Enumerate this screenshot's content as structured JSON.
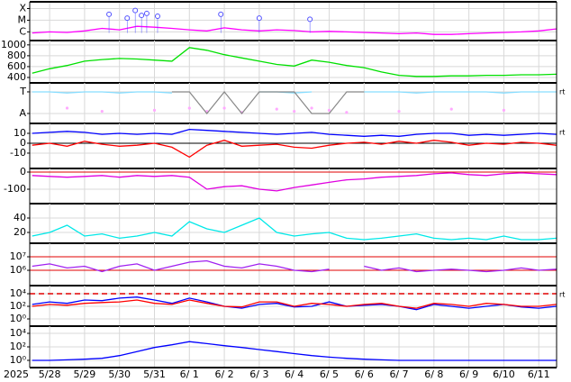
{
  "chart_data": [
    {
      "type": "line",
      "log": true,
      "ylim": [
        1.8e-07,
        0.00038
      ],
      "yticks": [
        {
          "value": 0.0001,
          "label": "X"
        },
        {
          "value": 1e-05,
          "label": "M"
        },
        {
          "value": 1e-06,
          "label": "C"
        }
      ],
      "x": [
        0.5,
        1,
        1.5,
        2,
        2.5,
        3,
        3.5,
        4,
        4.5,
        5,
        5.5,
        6,
        6.5,
        7,
        7.5,
        8,
        8.5,
        9,
        9.5,
        10,
        10.5,
        11,
        11.5,
        12,
        12.5,
        13,
        13.5,
        14,
        14.5,
        15,
        15.5
      ],
      "series": [
        {
          "color": "#ff00ff",
          "values": [
            8e-07,
            1e-06,
            9e-07,
            1.2e-06,
            2e-06,
            1.5e-06,
            3e-06,
            2.5e-06,
            2e-06,
            1.5e-06,
            1.2e-06,
            2.2e-06,
            1.5e-06,
            1.2e-06,
            1.5e-06,
            1.3e-06,
            1e-06,
            1.1e-06,
            1e-06,
            9e-07,
            8e-07,
            7e-07,
            8e-07,
            6e-07,
            6e-07,
            7e-07,
            8e-07,
            9e-07,
            1e-06,
            1.2e-06,
            1.8e-06
          ]
        },
        {
          "color": "#5050ff",
          "style": "markers",
          "x": [
            2.7,
            3.22,
            3.45,
            3.63,
            3.78,
            4.09,
            5.9,
            7.0,
            8.45
          ],
          "values": [
            3.2e-05,
            1.5e-05,
            6.8e-05,
            2.6e-05,
            3.8e-05,
            2.2e-05,
            3.2e-05,
            1.5e-05,
            1.2e-05
          ]
        }
      ]
    },
    {
      "type": "line",
      "ylim": [
        300,
        1080
      ],
      "yticks": [
        1000,
        800,
        600,
        400
      ],
      "x": [
        0.5,
        1,
        1.5,
        2,
        2.5,
        3,
        3.5,
        4,
        4.5,
        5,
        5.5,
        6,
        6.5,
        7,
        7.5,
        8,
        8.5,
        9,
        9.5,
        10,
        10.5,
        11,
        11.5,
        12,
        12.5,
        13,
        13.5,
        14,
        14.5,
        15,
        15.5
      ],
      "series": [
        {
          "color": "#00e000",
          "values": [
            480,
            560,
            620,
            700,
            730,
            750,
            740,
            720,
            700,
            950,
            900,
            820,
            760,
            700,
            640,
            610,
            720,
            680,
            620,
            580,
            500,
            440,
            420,
            420,
            430,
            430,
            440,
            440,
            450,
            450,
            460
          ]
        }
      ]
    },
    {
      "type": "line",
      "ylim": [
        -1.92,
        1.83
      ],
      "yticks": [
        {
          "value": 1,
          "label": "T"
        },
        {
          "value": -1,
          "label": "A"
        }
      ],
      "corner_label": "rt",
      "x": [
        0.5,
        1,
        1.5,
        2,
        2.5,
        3,
        3.5,
        4,
        4.5,
        5,
        5.5,
        6,
        6.5,
        7,
        7.5,
        8,
        8.5,
        9,
        9.5,
        10,
        10.5,
        11,
        11.5,
        12,
        12.5,
        13,
        13.5,
        14,
        14.5,
        15,
        15.5
      ],
      "series": [
        {
          "color": "#88ddff",
          "values": [
            1,
            1,
            0.9,
            1,
            1,
            0.9,
            1,
            1,
            0.9,
            null,
            null,
            1,
            null,
            1,
            1,
            0.9,
            1,
            null,
            null,
            1,
            1,
            1,
            0.9,
            1,
            1,
            1,
            1,
            0.9,
            1,
            1,
            1
          ]
        },
        {
          "color": "#ffaaff",
          "style": "dots",
          "values": [
            null,
            null,
            -0.5,
            null,
            -0.8,
            null,
            null,
            -0.7,
            null,
            -0.5,
            -0.8,
            -0.5,
            -0.9,
            null,
            -0.6,
            -0.8,
            -0.5,
            -0.7,
            -0.9,
            null,
            null,
            -0.8,
            null,
            null,
            -0.6,
            null,
            null,
            -0.7,
            null,
            null,
            null
          ]
        },
        {
          "color": "#888888",
          "values": [
            null,
            null,
            null,
            null,
            null,
            null,
            null,
            null,
            1,
            1,
            -1,
            1,
            -1,
            1,
            1,
            1,
            -1,
            -1,
            1,
            1,
            null,
            null,
            null,
            null,
            null,
            null,
            null,
            null,
            null,
            null,
            null
          ]
        }
      ]
    },
    {
      "type": "line",
      "ylim": [
        -25.5,
        20
      ],
      "yticks": [
        10,
        0,
        -10
      ],
      "corner_label": "rt",
      "reference_lines": [
        0
      ],
      "x": [
        0.5,
        1,
        1.5,
        2,
        2.5,
        3,
        3.5,
        4,
        4.5,
        5,
        5.5,
        6,
        6.5,
        7,
        7.5,
        8,
        8.5,
        9,
        9.5,
        10,
        10.5,
        11,
        11.5,
        12,
        12.5,
        13,
        13.5,
        14,
        14.5,
        15,
        15.5
      ],
      "series": [
        {
          "color": "#0000ff",
          "values": [
            10,
            11,
            12,
            11,
            9,
            10,
            9,
            10,
            9,
            14,
            13,
            12,
            11,
            10,
            9,
            10,
            11,
            9,
            8,
            7,
            8,
            7,
            9,
            10,
            10,
            8,
            9,
            8,
            9,
            10,
            9
          ]
        },
        {
          "color": "#ff0000",
          "values": [
            -2,
            0,
            -3,
            2,
            -1,
            -3,
            -2,
            0,
            -4,
            -14,
            -2,
            3,
            -3,
            -2,
            -1,
            -4,
            -5,
            -2,
            0,
            1,
            -1,
            2,
            0,
            3,
            1,
            -2,
            0,
            -1,
            1,
            0,
            -2
          ]
        }
      ]
    },
    {
      "type": "line",
      "ylim": [
        -184,
        21
      ],
      "yticks": [
        0,
        -100
      ],
      "reference_lines": [
        0
      ],
      "x": [
        0.5,
        1,
        1.5,
        2,
        2.5,
        3,
        3.5,
        4,
        4.5,
        5,
        5.5,
        6,
        6.5,
        7,
        7.5,
        8,
        8.5,
        9,
        9.5,
        10,
        10.5,
        11,
        11.5,
        12,
        12.5,
        13,
        13.5,
        14,
        14.5,
        15,
        15.5
      ],
      "series": [
        {
          "color": "#e000e0",
          "values": [
            -20,
            -25,
            -30,
            -25,
            -20,
            -30,
            -20,
            -25,
            -20,
            -30,
            -100,
            -85,
            -80,
            -100,
            -110,
            -90,
            -75,
            -60,
            -45,
            -40,
            -30,
            -25,
            -20,
            -10,
            -5,
            -15,
            -20,
            -10,
            -5,
            -10,
            -15
          ]
        }
      ]
    },
    {
      "type": "line",
      "ylim": [
        5,
        60
      ],
      "yticks": [
        40,
        20
      ],
      "x": [
        0.5,
        1,
        1.5,
        2,
        2.5,
        3,
        3.5,
        4,
        4.5,
        5,
        5.5,
        6,
        6.5,
        7,
        7.5,
        8,
        8.5,
        9,
        9.5,
        10,
        10.5,
        11,
        11.5,
        12,
        12.5,
        13,
        13.5,
        14,
        14.5,
        15,
        15.5
      ],
      "series": [
        {
          "color": "#00e8e8",
          "values": [
            15,
            20,
            30,
            15,
            18,
            12,
            15,
            20,
            15,
            35,
            25,
            20,
            30,
            40,
            20,
            15,
            18,
            20,
            12,
            10,
            12,
            15,
            18,
            12,
            10,
            12,
            10,
            15,
            10,
            10,
            12
          ]
        }
      ]
    },
    {
      "type": "line",
      "log": true,
      "ylim": [
        74000,
        100000000.0
      ],
      "yticks": [
        {
          "value": 10000000.0,
          "label": "10⁷"
        },
        {
          "value": 1000000.0,
          "label": "10⁶"
        }
      ],
      "reference_lines": [
        10000000.0,
        1000000.0
      ],
      "x": [
        0.5,
        1,
        1.5,
        2,
        2.5,
        3,
        3.5,
        4,
        4.5,
        5,
        5.5,
        6,
        6.5,
        7,
        7.5,
        8,
        8.5,
        9,
        9.5,
        10,
        10.5,
        11,
        11.5,
        12,
        12.5,
        13,
        13.5,
        14,
        14.5,
        15,
        15.5
      ],
      "series": [
        {
          "color": "#a020f0",
          "values": [
            2000000.0,
            3000000.0,
            1500000.0,
            2000000.0,
            800000.0,
            2000000.0,
            3000000.0,
            1000000.0,
            2000000.0,
            4000000.0,
            5000000.0,
            2000000.0,
            1500000.0,
            3000000.0,
            2000000.0,
            1000000.0,
            800000.0,
            1200000.0,
            null,
            2000000.0,
            1000000.0,
            1500000.0,
            800000.0,
            1000000.0,
            1200000.0,
            1000000.0,
            800000.0,
            1000000.0,
            1500000.0,
            1000000.0,
            1200000.0
          ]
        }
      ]
    },
    {
      "type": "line",
      "log": true,
      "ylim": [
        0.072,
        195000
      ],
      "yticks": [
        {
          "value": 10000,
          "label": "10⁴"
        },
        {
          "value": 100,
          "label": "10²"
        },
        {
          "value": 1,
          "label": "10⁰"
        }
      ],
      "corner_label": "rt",
      "dashed_reference_lines": [
        10000
      ],
      "x": [
        0.5,
        1,
        1.5,
        2,
        2.5,
        3,
        3.5,
        4,
        4.5,
        5,
        5.5,
        6,
        6.5,
        7,
        7.5,
        8,
        8.5,
        9,
        9.5,
        10,
        10.5,
        11,
        11.5,
        12,
        12.5,
        13,
        13.5,
        14,
        14.5,
        15,
        15.5
      ],
      "series": [
        {
          "color": "#0000ff",
          "values": [
            200,
            500,
            300,
            1000,
            800,
            2000,
            3000,
            1000,
            300,
            2000,
            500,
            100,
            50,
            200,
            300,
            80,
            100,
            500,
            100,
            150,
            200,
            100,
            30,
            200,
            100,
            50,
            100,
            200,
            80,
            50,
            100
          ]
        },
        {
          "color": "#ff0000",
          "values": [
            100,
            200,
            150,
            300,
            400,
            500,
            1000,
            300,
            200,
            1000,
            300,
            100,
            80,
            500,
            500,
            100,
            300,
            200,
            100,
            200,
            300,
            100,
            50,
            300,
            200,
            100,
            300,
            200,
            100,
            100,
            200
          ]
        }
      ]
    },
    {
      "type": "line",
      "log": true,
      "ylim": [
        0.085,
        117000
      ],
      "yticks": [
        {
          "value": 10000,
          "label": "10⁴"
        },
        {
          "value": 100,
          "label": "10²"
        },
        {
          "value": 1,
          "label": "10⁰"
        }
      ],
      "x": [
        0.5,
        1,
        1.5,
        2,
        2.5,
        3,
        3.5,
        4,
        4.5,
        5,
        5.5,
        6,
        6.5,
        7,
        7.5,
        8,
        8.5,
        9,
        9.5,
        10,
        10.5,
        11,
        11.5,
        12,
        12.5,
        13,
        13.5,
        14,
        14.5,
        15,
        15.5
      ],
      "xlim": [
        0.43,
        15.51
      ],
      "year_label": "2025",
      "xticks": [
        {
          "value": 1,
          "label": "5/28"
        },
        {
          "value": 2,
          "label": "5/29"
        },
        {
          "value": 3,
          "label": "5/30"
        },
        {
          "value": 4,
          "label": "5/31"
        },
        {
          "value": 5,
          "label": "6/ 1"
        },
        {
          "value": 6,
          "label": "6/ 2"
        },
        {
          "value": 7,
          "label": "6/ 3"
        },
        {
          "value": 8,
          "label": "6/ 4"
        },
        {
          "value": 9,
          "label": "6/ 5"
        },
        {
          "value": 10,
          "label": "6/ 6"
        },
        {
          "value": 11,
          "label": "6/ 7"
        },
        {
          "value": 12,
          "label": "6/ 8"
        },
        {
          "value": 13,
          "label": "6/ 9"
        },
        {
          "value": 14,
          "label": "6/10"
        },
        {
          "value": 15,
          "label": "6/11"
        }
      ],
      "series": [
        {
          "color": "#0000ff",
          "values": [
            1,
            1,
            1.2,
            1.5,
            2,
            5,
            20,
            80,
            200,
            600,
            300,
            150,
            80,
            40,
            20,
            10,
            5,
            3,
            2,
            1.5,
            1.2,
            1,
            1,
            1,
            1,
            1,
            1,
            1,
            1,
            1,
            1
          ]
        }
      ]
    }
  ]
}
